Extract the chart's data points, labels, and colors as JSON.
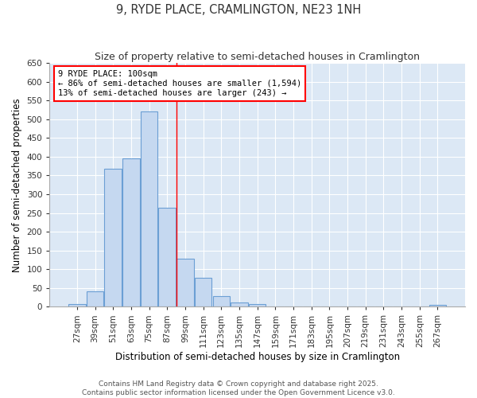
{
  "title": "9, RYDE PLACE, CRAMLINGTON, NE23 1NH",
  "subtitle": "Size of property relative to semi-detached houses in Cramlington",
  "xlabel": "Distribution of semi-detached houses by size in Cramlington",
  "ylabel": "Number of semi-detached properties",
  "categories": [
    "27sqm",
    "39sqm",
    "51sqm",
    "63sqm",
    "75sqm",
    "87sqm",
    "99sqm",
    "111sqm",
    "123sqm",
    "135sqm",
    "147sqm",
    "159sqm",
    "171sqm",
    "183sqm",
    "195sqm",
    "207sqm",
    "219sqm",
    "231sqm",
    "243sqm",
    "255sqm",
    "267sqm"
  ],
  "values": [
    8,
    42,
    368,
    395,
    520,
    263,
    128,
    76,
    29,
    12,
    8,
    0,
    0,
    0,
    0,
    0,
    0,
    0,
    0,
    0,
    5
  ],
  "bar_color": "#c5d8f0",
  "bar_edge_color": "#6b9fd4",
  "highlight_index": 6,
  "annotation_title": "9 RYDE PLACE: 100sqm",
  "annotation_line1": "← 86% of semi-detached houses are smaller (1,594)",
  "annotation_line2": "13% of semi-detached houses are larger (243) →",
  "footer1": "Contains HM Land Registry data © Crown copyright and database right 2025.",
  "footer2": "Contains public sector information licensed under the Open Government Licence v3.0.",
  "ylim": [
    0,
    650
  ],
  "yticks": [
    0,
    50,
    100,
    150,
    200,
    250,
    300,
    350,
    400,
    450,
    500,
    550,
    600,
    650
  ],
  "plot_bg_color": "#dce8f5",
  "title_fontsize": 10.5,
  "subtitle_fontsize": 9,
  "axis_label_fontsize": 8.5,
  "tick_fontsize": 7.5,
  "footer_fontsize": 6.5
}
